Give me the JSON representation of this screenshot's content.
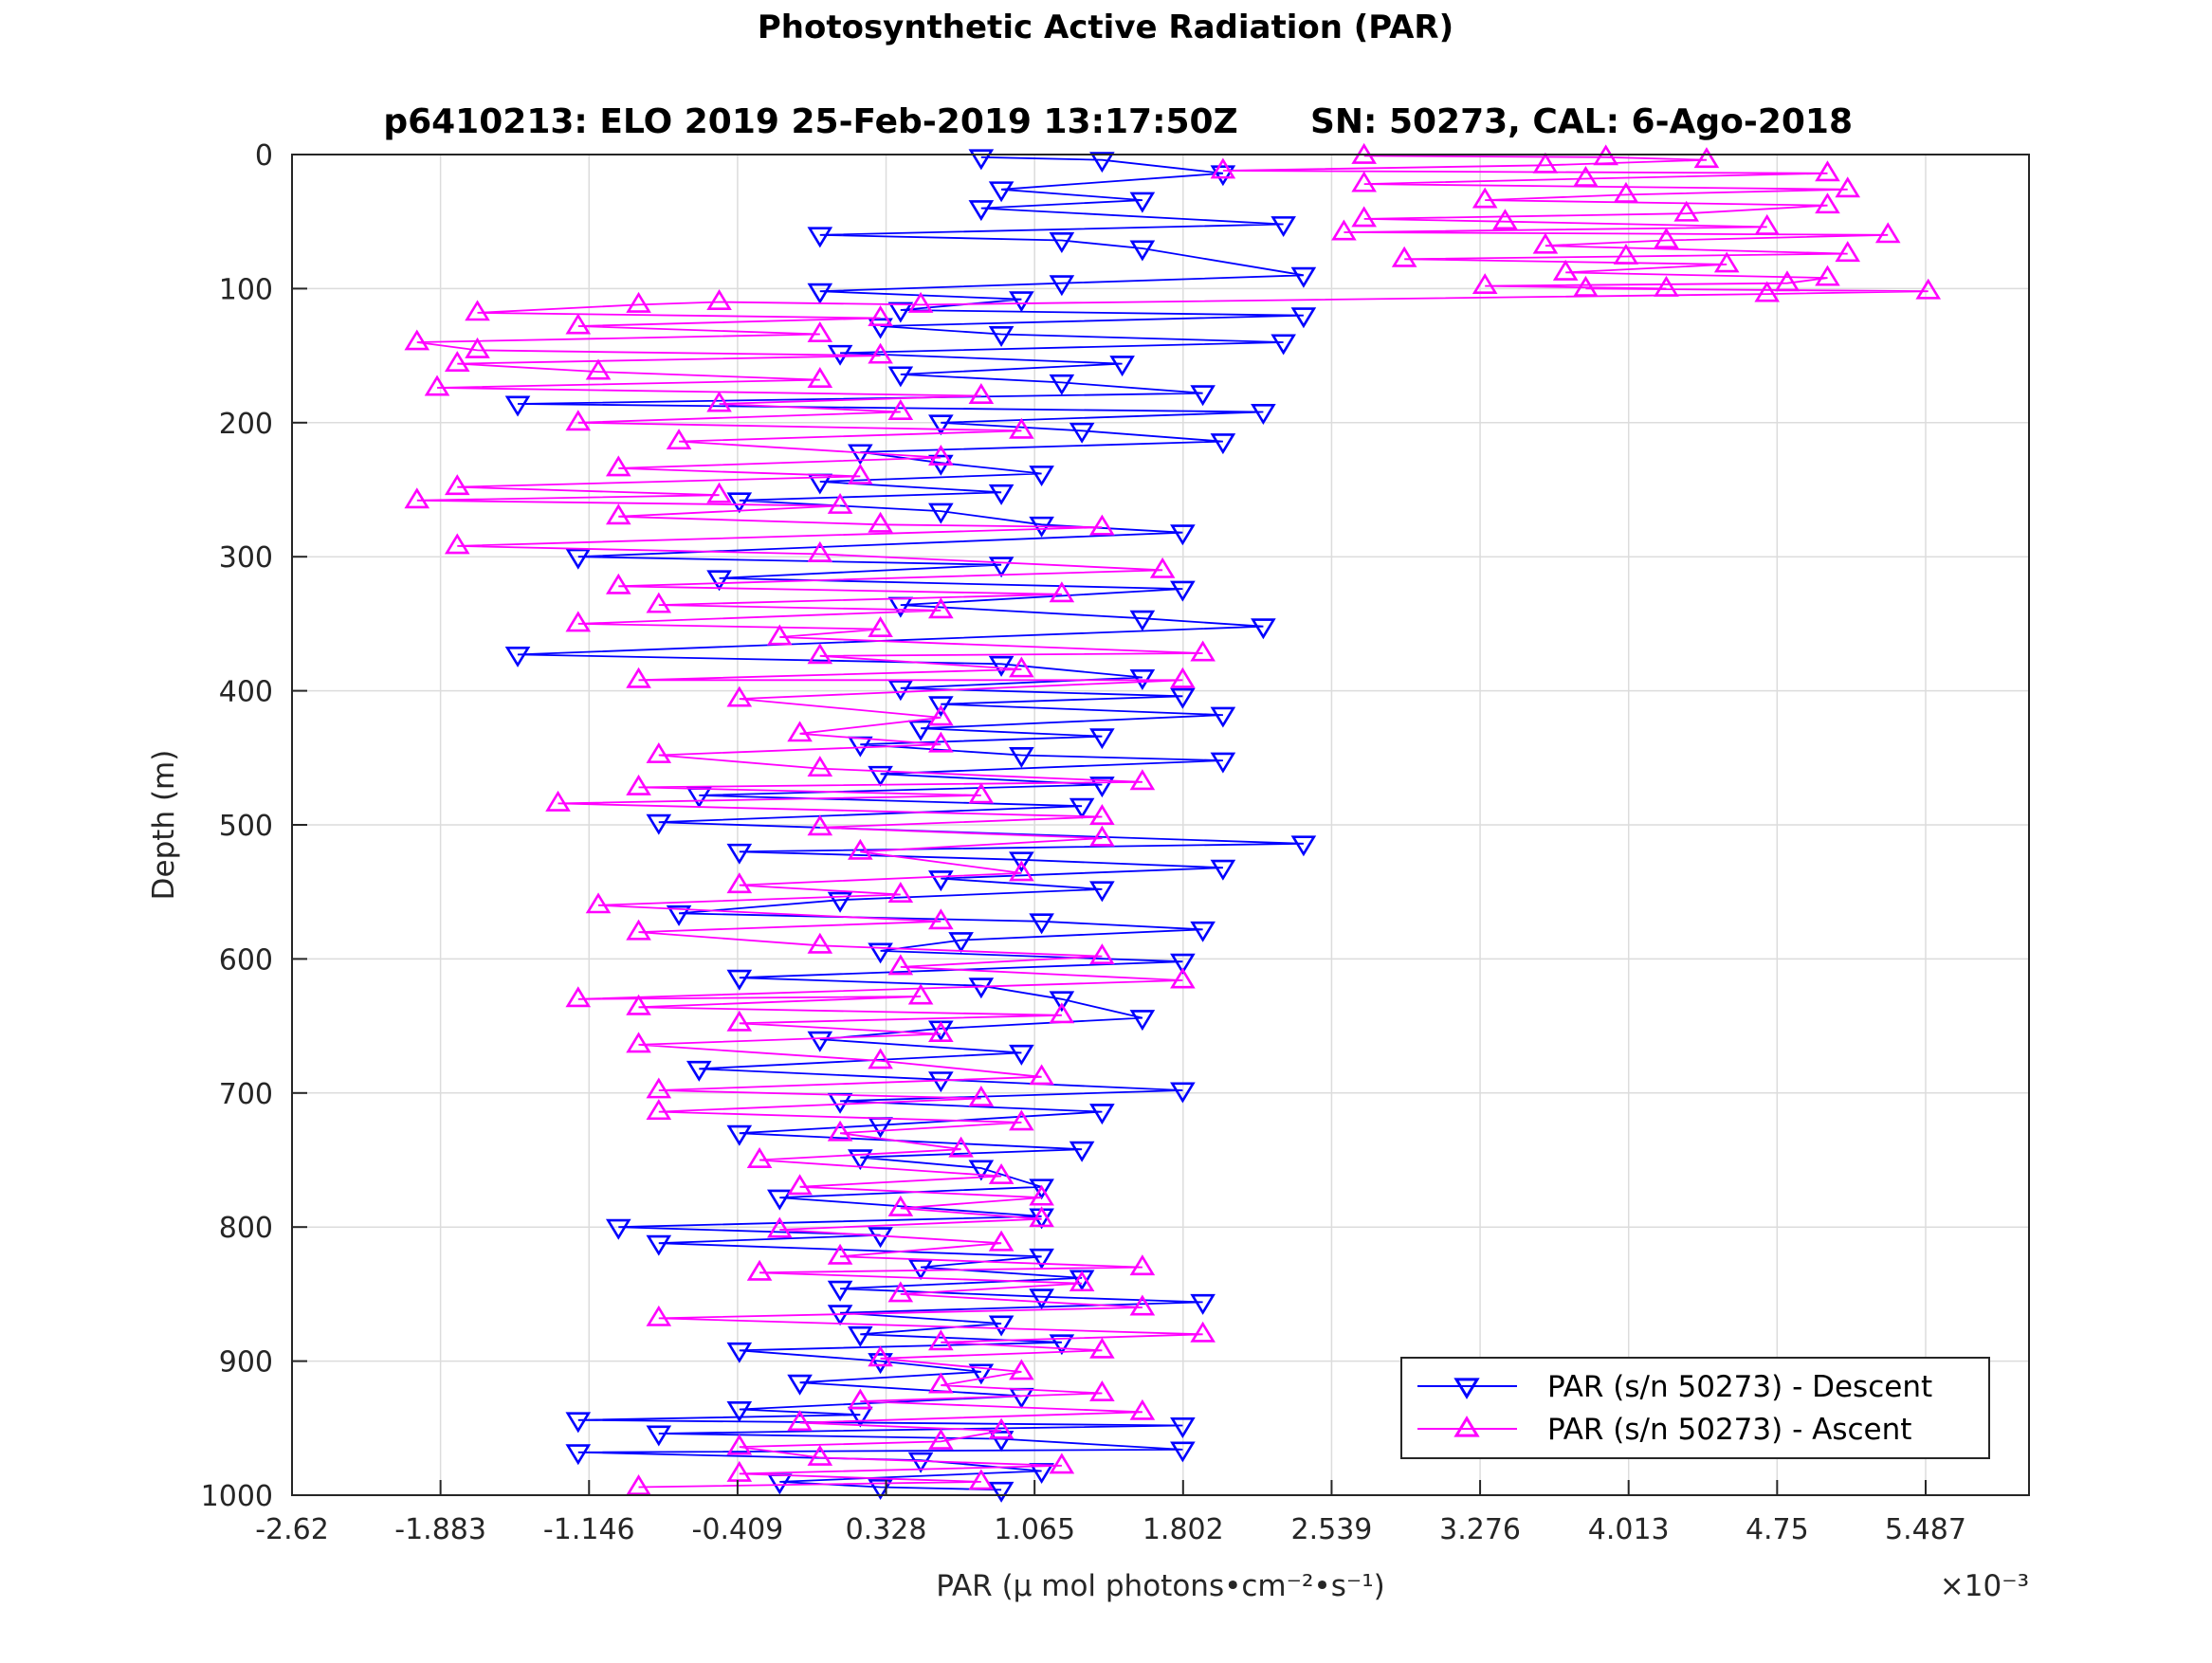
{
  "chart_data": {
    "type": "line",
    "title": "Photosynthetic Active Radiation (PAR)",
    "subtitle_left": "p6410213: ELO 2019 25-Feb-2019 13:17:50Z",
    "subtitle_right": "SN: 50273, CAL: 6-Ago-2018",
    "xlabel": "PAR (μ mol photons•cm⁻²•s⁻¹)",
    "x_exponent": "×10⁻³",
    "ylabel": "Depth (m)",
    "xlim": [
      -2.62,
      6.0
    ],
    "ylim": [
      0,
      1000
    ],
    "y_reversed": true,
    "grid": true,
    "legend_position": "bottom-right",
    "xticks": [
      -2.62,
      -1.883,
      -1.146,
      -0.409,
      0.328,
      1.065,
      1.802,
      2.539,
      3.276,
      4.013,
      4.75,
      5.487
    ],
    "xtick_labels": [
      "-2.62",
      "-1.883",
      "-1.146",
      "-0.409",
      "0.328",
      "1.065",
      "1.802",
      "2.539",
      "3.276",
      "4.013",
      "4.75",
      "5.487"
    ],
    "yticks": [
      0,
      100,
      200,
      300,
      400,
      500,
      600,
      700,
      800,
      900,
      1000
    ],
    "ytick_labels": [
      "0",
      "100",
      "200",
      "300",
      "400",
      "500",
      "600",
      "700",
      "800",
      "900",
      "1000"
    ],
    "series": [
      {
        "name": "PAR (s/n 50273) - Descent",
        "color": "#0000ff",
        "marker": "triangle-down",
        "points": [
          [
            0.8,
            2
          ],
          [
            1.4,
            4
          ],
          [
            2.0,
            14
          ],
          [
            0.9,
            26
          ],
          [
            1.6,
            34
          ],
          [
            0.8,
            40
          ],
          [
            2.3,
            52
          ],
          [
            0.0,
            60
          ],
          [
            1.2,
            64
          ],
          [
            1.6,
            70
          ],
          [
            2.4,
            90
          ],
          [
            1.2,
            96
          ],
          [
            0.0,
            102
          ],
          [
            1.0,
            108
          ],
          [
            0.4,
            116
          ],
          [
            2.4,
            120
          ],
          [
            0.3,
            128
          ],
          [
            0.9,
            134
          ],
          [
            2.3,
            140
          ],
          [
            0.1,
            148
          ],
          [
            1.5,
            156
          ],
          [
            0.4,
            164
          ],
          [
            1.2,
            170
          ],
          [
            1.9,
            178
          ],
          [
            -1.5,
            186
          ],
          [
            2.2,
            192
          ],
          [
            0.6,
            200
          ],
          [
            1.3,
            206
          ],
          [
            2.0,
            214
          ],
          [
            0.2,
            222
          ],
          [
            0.6,
            230
          ],
          [
            1.1,
            238
          ],
          [
            0.0,
            244
          ],
          [
            0.9,
            252
          ],
          [
            -0.4,
            258
          ],
          [
            0.6,
            266
          ],
          [
            1.1,
            276
          ],
          [
            1.8,
            282
          ],
          [
            -1.2,
            300
          ],
          [
            0.9,
            306
          ],
          [
            -0.5,
            316
          ],
          [
            1.8,
            324
          ],
          [
            0.4,
            336
          ],
          [
            1.6,
            346
          ],
          [
            2.2,
            352
          ],
          [
            -1.5,
            373
          ],
          [
            0.9,
            380
          ],
          [
            1.6,
            390
          ],
          [
            0.4,
            398
          ],
          [
            1.8,
            404
          ],
          [
            0.6,
            410
          ],
          [
            2.0,
            418
          ],
          [
            0.5,
            428
          ],
          [
            1.4,
            434
          ],
          [
            0.2,
            440
          ],
          [
            1.0,
            448
          ],
          [
            2.0,
            452
          ],
          [
            0.3,
            462
          ],
          [
            1.4,
            470
          ],
          [
            -0.6,
            478
          ],
          [
            1.3,
            486
          ],
          [
            -0.8,
            498
          ],
          [
            2.4,
            514
          ],
          [
            -0.4,
            520
          ],
          [
            1.0,
            526
          ],
          [
            2.0,
            532
          ],
          [
            0.6,
            540
          ],
          [
            1.4,
            548
          ],
          [
            0.1,
            556
          ],
          [
            -0.7,
            566
          ],
          [
            1.1,
            572
          ],
          [
            1.9,
            578
          ],
          [
            0.7,
            586
          ],
          [
            0.3,
            594
          ],
          [
            1.8,
            602
          ],
          [
            -0.4,
            614
          ],
          [
            0.8,
            620
          ],
          [
            1.2,
            630
          ],
          [
            1.6,
            644
          ],
          [
            0.6,
            652
          ],
          [
            0.0,
            660
          ],
          [
            1.0,
            670
          ],
          [
            -0.6,
            682
          ],
          [
            0.6,
            690
          ],
          [
            1.8,
            698
          ],
          [
            0.1,
            706
          ],
          [
            1.4,
            714
          ],
          [
            0.3,
            724
          ],
          [
            -0.4,
            730
          ],
          [
            1.3,
            742
          ],
          [
            0.2,
            748
          ],
          [
            0.8,
            756
          ],
          [
            1.1,
            770
          ],
          [
            -0.2,
            778
          ],
          [
            1.1,
            792
          ],
          [
            -1.0,
            800
          ],
          [
            0.3,
            806
          ],
          [
            -0.8,
            812
          ],
          [
            1.1,
            822
          ],
          [
            0.5,
            830
          ],
          [
            1.3,
            838
          ],
          [
            0.1,
            846
          ],
          [
            1.1,
            852
          ],
          [
            1.9,
            856
          ],
          [
            0.1,
            864
          ],
          [
            0.9,
            872
          ],
          [
            0.2,
            880
          ],
          [
            1.2,
            886
          ],
          [
            -0.4,
            892
          ],
          [
            0.3,
            900
          ],
          [
            0.8,
            908
          ],
          [
            -0.1,
            916
          ],
          [
            1.0,
            926
          ],
          [
            -0.4,
            936
          ],
          [
            0.2,
            940
          ],
          [
            -1.2,
            944
          ],
          [
            1.8,
            948
          ],
          [
            -0.8,
            954
          ],
          [
            0.9,
            958
          ],
          [
            1.8,
            966
          ],
          [
            -1.2,
            968
          ],
          [
            0.5,
            974
          ],
          [
            1.1,
            982
          ],
          [
            -0.2,
            990
          ],
          [
            0.3,
            994
          ],
          [
            0.9,
            996
          ]
        ]
      },
      {
        "name": "PAR (s/n 50273) - Ascent",
        "color": "#ff00ff",
        "marker": "triangle-up",
        "points": [
          [
            -0.9,
            994
          ],
          [
            0.8,
            990
          ],
          [
            -0.4,
            984
          ],
          [
            1.2,
            978
          ],
          [
            0.0,
            972
          ],
          [
            -0.4,
            964
          ],
          [
            0.6,
            960
          ],
          [
            0.9,
            952
          ],
          [
            -0.1,
            946
          ],
          [
            1.6,
            938
          ],
          [
            0.2,
            930
          ],
          [
            1.4,
            924
          ],
          [
            0.6,
            918
          ],
          [
            1.0,
            908
          ],
          [
            0.3,
            898
          ],
          [
            1.4,
            892
          ],
          [
            0.6,
            886
          ],
          [
            1.9,
            880
          ],
          [
            -0.8,
            868
          ],
          [
            1.6,
            860
          ],
          [
            0.4,
            850
          ],
          [
            1.3,
            842
          ],
          [
            -0.3,
            834
          ],
          [
            1.6,
            830
          ],
          [
            0.1,
            822
          ],
          [
            0.9,
            812
          ],
          [
            -0.2,
            802
          ],
          [
            1.1,
            794
          ],
          [
            0.4,
            786
          ],
          [
            1.1,
            778
          ],
          [
            -0.1,
            770
          ],
          [
            0.9,
            762
          ],
          [
            -0.3,
            750
          ],
          [
            0.7,
            742
          ],
          [
            0.1,
            730
          ],
          [
            1.0,
            722
          ],
          [
            -0.8,
            714
          ],
          [
            0.8,
            704
          ],
          [
            -0.8,
            698
          ],
          [
            1.1,
            688
          ],
          [
            0.3,
            676
          ],
          [
            -0.9,
            664
          ],
          [
            0.6,
            656
          ],
          [
            -0.4,
            648
          ],
          [
            1.2,
            642
          ],
          [
            -0.9,
            636
          ],
          [
            0.5,
            628
          ],
          [
            -1.2,
            630
          ],
          [
            1.8,
            616
          ],
          [
            0.4,
            606
          ],
          [
            1.4,
            598
          ],
          [
            0.0,
            590
          ],
          [
            -0.9,
            580
          ],
          [
            0.6,
            572
          ],
          [
            -1.1,
            560
          ],
          [
            0.4,
            552
          ],
          [
            -0.4,
            545
          ],
          [
            1.0,
            536
          ],
          [
            0.2,
            520
          ],
          [
            1.4,
            510
          ],
          [
            0.0,
            502
          ],
          [
            1.4,
            494
          ],
          [
            -1.3,
            484
          ],
          [
            0.8,
            478
          ],
          [
            -0.9,
            472
          ],
          [
            1.6,
            468
          ],
          [
            0.0,
            458
          ],
          [
            -0.8,
            448
          ],
          [
            0.6,
            440
          ],
          [
            -0.1,
            432
          ],
          [
            0.6,
            420
          ],
          [
            -0.4,
            406
          ],
          [
            1.8,
            392
          ],
          [
            -0.9,
            392
          ],
          [
            1.0,
            384
          ],
          [
            0.0,
            374
          ],
          [
            1.9,
            372
          ],
          [
            -0.2,
            360
          ],
          [
            0.3,
            354
          ],
          [
            -1.2,
            350
          ],
          [
            0.6,
            340
          ],
          [
            -0.8,
            336
          ],
          [
            1.2,
            328
          ],
          [
            -1.0,
            322
          ],
          [
            1.7,
            310
          ],
          [
            0.0,
            298
          ],
          [
            -1.8,
            292
          ],
          [
            1.4,
            278
          ],
          [
            0.3,
            276
          ],
          [
            -1.0,
            270
          ],
          [
            0.1,
            262
          ],
          [
            -2.0,
            258
          ],
          [
            -0.5,
            254
          ],
          [
            -1.8,
            248
          ],
          [
            0.2,
            240
          ],
          [
            -1.0,
            234
          ],
          [
            0.6,
            226
          ],
          [
            -0.7,
            214
          ],
          [
            1.0,
            206
          ],
          [
            -1.2,
            200
          ],
          [
            0.4,
            192
          ],
          [
            -0.5,
            186
          ],
          [
            0.8,
            180
          ],
          [
            -1.9,
            174
          ],
          [
            0.0,
            168
          ],
          [
            -1.1,
            162
          ],
          [
            -1.8,
            156
          ],
          [
            0.3,
            150
          ],
          [
            -1.7,
            146
          ],
          [
            -2.0,
            140
          ],
          [
            0.0,
            134
          ],
          [
            -1.2,
            128
          ],
          [
            0.3,
            122
          ],
          [
            -1.7,
            118
          ],
          [
            -0.9,
            112
          ],
          [
            -0.5,
            110
          ],
          [
            0.5,
            112
          ],
          [
            4.7,
            104
          ],
          [
            5.5,
            102
          ],
          [
            3.8,
            100
          ],
          [
            4.2,
            100
          ],
          [
            3.3,
            98
          ],
          [
            4.8,
            96
          ],
          [
            5.0,
            92
          ],
          [
            3.7,
            88
          ],
          [
            4.5,
            82
          ],
          [
            2.9,
            78
          ],
          [
            4.0,
            76
          ],
          [
            5.1,
            74
          ],
          [
            3.6,
            68
          ],
          [
            4.2,
            64
          ],
          [
            5.3,
            60
          ],
          [
            2.6,
            58
          ],
          [
            4.7,
            54
          ],
          [
            3.4,
            50
          ],
          [
            2.7,
            48
          ],
          [
            4.3,
            44
          ],
          [
            5.0,
            38
          ],
          [
            3.3,
            34
          ],
          [
            4.0,
            30
          ],
          [
            5.1,
            26
          ],
          [
            2.7,
            22
          ],
          [
            3.8,
            18
          ],
          [
            5.0,
            14
          ],
          [
            2.0,
            12
          ],
          [
            3.6,
            8
          ],
          [
            4.4,
            4
          ],
          [
            3.9,
            2
          ],
          [
            2.7,
            1
          ]
        ]
      }
    ]
  }
}
